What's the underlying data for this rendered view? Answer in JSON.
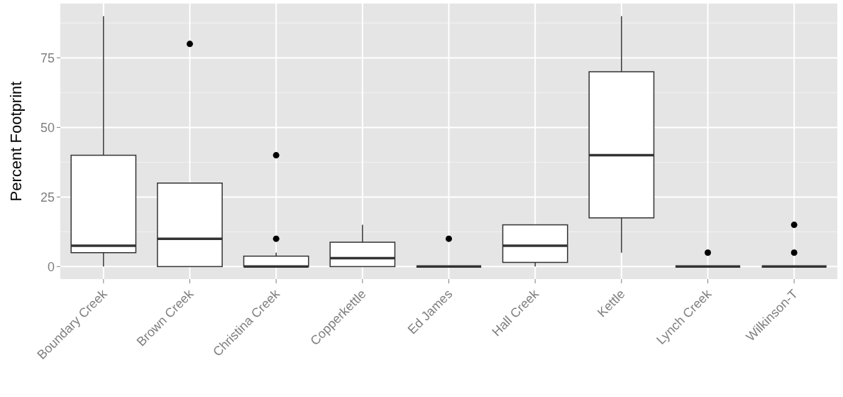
{
  "chart_data": {
    "type": "box",
    "ylabel": "Percent Footprint",
    "categories": [
      "Boundary Creek",
      "Brown Creek",
      "Christina Creek",
      "Copperkettle",
      "Ed James",
      "Hall Creek",
      "Kettle",
      "Lynch Creek",
      "Wilkinson-T"
    ],
    "boxes": [
      {
        "low": 0,
        "q1": 5,
        "median": 7.5,
        "q3": 40,
        "high": 90
      },
      {
        "low": 0,
        "q1": 0,
        "median": 10,
        "q3": 30,
        "high": 30,
        "outliers": [
          80
        ]
      },
      {
        "low": 0,
        "q1": 0,
        "median": 0,
        "q3": 3.75,
        "high": 5,
        "outliers": [
          10,
          40
        ]
      },
      {
        "low": 0,
        "q1": 0,
        "median": 3,
        "q3": 8.75,
        "high": 15
      },
      {
        "low": 0,
        "q1": 0,
        "median": 0,
        "q3": 0,
        "high": 0,
        "outliers": [
          10
        ]
      },
      {
        "low": 0,
        "q1": 1.5,
        "median": 7.5,
        "q3": 15,
        "high": 15
      },
      {
        "low": 5,
        "q1": 17.5,
        "median": 40,
        "q3": 70,
        "high": 90
      },
      {
        "low": 0,
        "q1": 0,
        "median": 0,
        "q3": 0,
        "high": 0,
        "outliers": [
          5
        ]
      },
      {
        "low": 0,
        "q1": 0,
        "median": 0,
        "q3": 0,
        "high": 0,
        "outliers": [
          5,
          15
        ]
      }
    ],
    "ylim": [
      -4.5,
      94.5
    ],
    "yticks": [
      0,
      25,
      50,
      75
    ],
    "grid": true
  }
}
